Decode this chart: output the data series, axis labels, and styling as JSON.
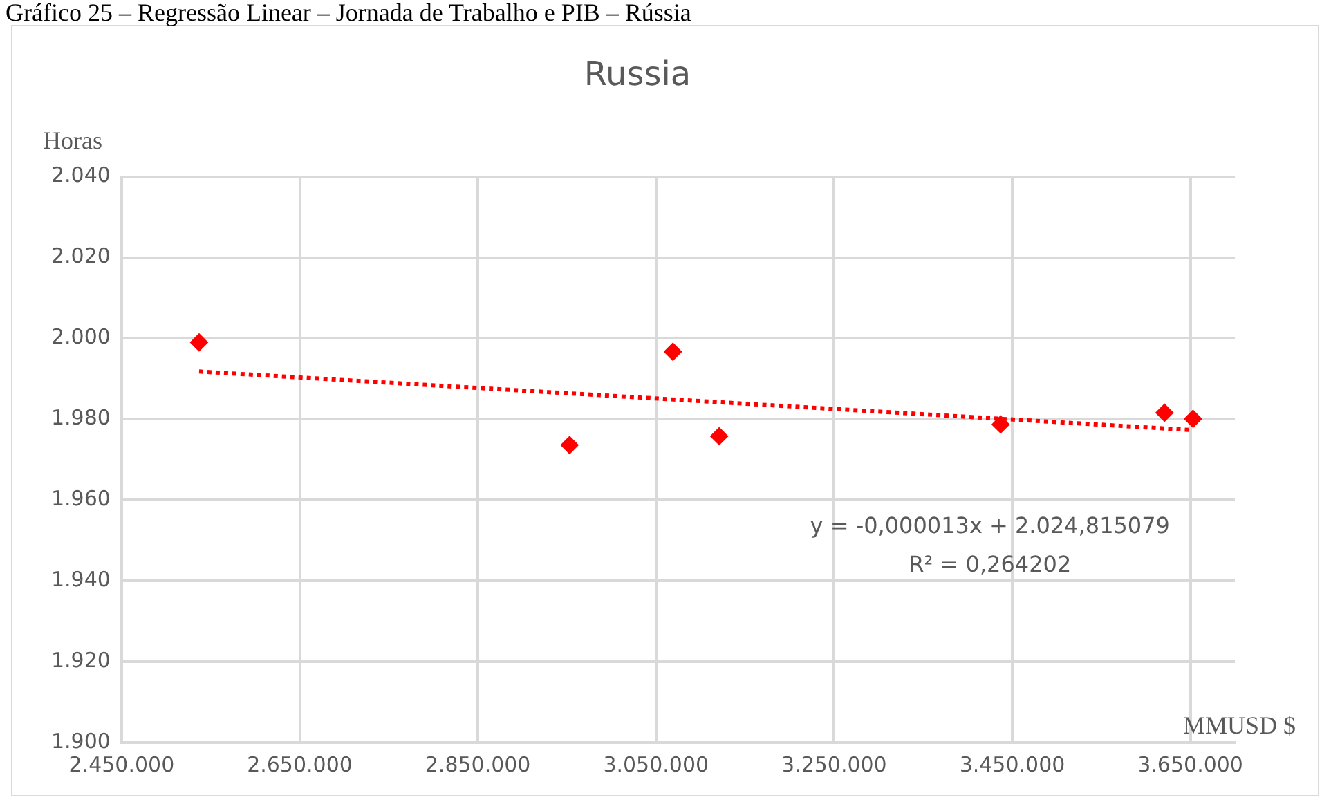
{
  "chart_data": {
    "type": "scatter",
    "title": "Russia",
    "xlabel": "MMUSD $",
    "ylabel": "Horas",
    "annotations": [
      "Gráfico 25 – Regressão Linear – Jornada de Trabalho e PIB – Rússia",
      "y = -0,000013x + 2.024,815079",
      "R² = 0,264202"
    ],
    "series": [
      {
        "type": "scatter",
        "color": "#ff0000",
        "marker": "diamond",
        "x": [
          2537000,
          2953000,
          3069000,
          3121000,
          3437000,
          3621000,
          3653000
        ],
        "values": [
          1999,
          1973.6,
          1996.7,
          1975.8,
          1978.7,
          1981.6,
          1980.1
        ]
      },
      {
        "type": "line",
        "color": "#ff0000",
        "marker": "none",
        "line_style": "dotted",
        "x": [
          2537000,
          3653000
        ],
        "values": [
          1991.8,
          1977.3
        ]
      }
    ],
    "xlim": [
      2450000,
      3700000
    ],
    "xticks": [
      {
        "value": 2450000,
        "label": "2.450.000"
      },
      {
        "value": 2650000,
        "label": "2.650.000"
      },
      {
        "value": 2850000,
        "label": "2.850.000"
      },
      {
        "value": 3050000,
        "label": "3.050.000"
      },
      {
        "value": 3250000,
        "label": "3.250.000"
      },
      {
        "value": 3450000,
        "label": "3.450.000"
      },
      {
        "value": 3650000,
        "label": "3.650.000"
      }
    ],
    "ylim": [
      1900,
      2040
    ],
    "yticks": [
      {
        "value": 1900,
        "label": "1.900"
      },
      {
        "value": 1920,
        "label": "1.920"
      },
      {
        "value": 1940,
        "label": "1.940"
      },
      {
        "value": 1960,
        "label": "1.960"
      },
      {
        "value": 1980,
        "label": "1.980"
      },
      {
        "value": 2000,
        "label": "2.000"
      },
      {
        "value": 2020,
        "label": "2.020"
      },
      {
        "value": 2040,
        "label": "2.040"
      }
    ],
    "grid": true,
    "legend": false
  }
}
